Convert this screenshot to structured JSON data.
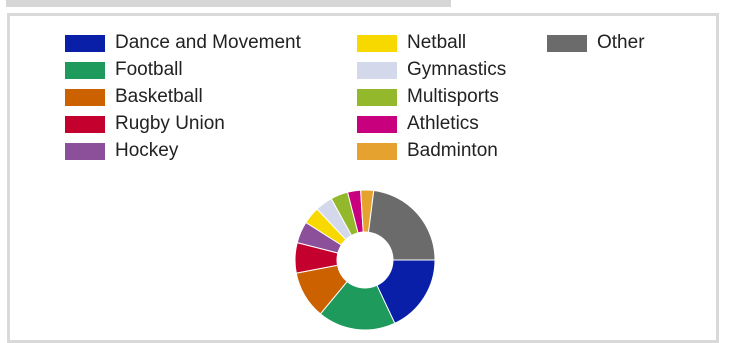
{
  "chart_data": {
    "type": "pie",
    "variant": "donut",
    "legend_position": "top",
    "slices": [
      {
        "label": "Dance and Movement",
        "value": 18,
        "color": "#0a1fa8"
      },
      {
        "label": "Football",
        "value": 18,
        "color": "#1e9a5d"
      },
      {
        "label": "Basketball",
        "value": 11,
        "color": "#cc6100"
      },
      {
        "label": "Rugby Union",
        "value": 7,
        "color": "#c4002f"
      },
      {
        "label": "Hockey",
        "value": 5,
        "color": "#8c4f9a"
      },
      {
        "label": "Netball",
        "value": 4,
        "color": "#f7d900"
      },
      {
        "label": "Gymnastics",
        "value": 4,
        "color": "#d3d8ea"
      },
      {
        "label": "Multisports",
        "value": 4,
        "color": "#93b82b"
      },
      {
        "label": "Athletics",
        "value": 3,
        "color": "#c9007e"
      },
      {
        "label": "Badminton",
        "value": 3,
        "color": "#e6a22f"
      },
      {
        "label": "Other",
        "value": 23,
        "color": "#6b6b6b"
      }
    ]
  }
}
